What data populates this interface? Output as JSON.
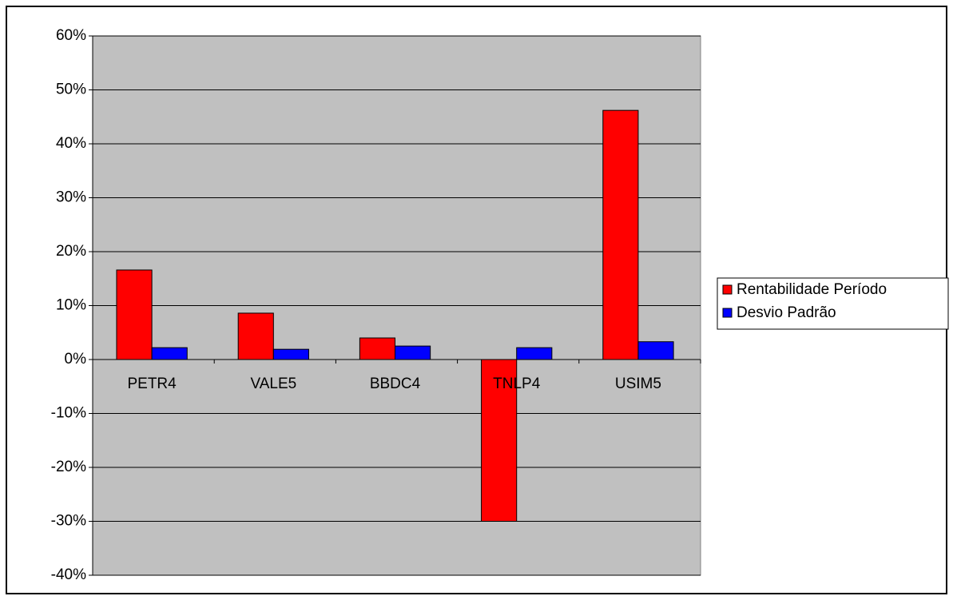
{
  "chart_data": {
    "type": "bar",
    "categories": [
      "PETR4",
      "VALE5",
      "BBDC4",
      "TNLP4",
      "USIM5"
    ],
    "series": [
      {
        "name": "Rentabilidade Período",
        "color": "#ff0000",
        "values": [
          16.6,
          8.6,
          4.0,
          -30,
          46.2
        ]
      },
      {
        "name": "Desvio Padrão",
        "color": "#0000ff",
        "values": [
          2.2,
          1.9,
          2.5,
          2.2,
          3.3
        ]
      }
    ],
    "ylim": [
      -40,
      60
    ],
    "yticks": [
      {
        "value": -40,
        "label": "-40%"
      },
      {
        "value": -30,
        "label": "-30%"
      },
      {
        "value": -20,
        "label": "-20%"
      },
      {
        "value": -10,
        "label": "-10%"
      },
      {
        "value": 0,
        "label": "0%"
      },
      {
        "value": 10,
        "label": "10%"
      },
      {
        "value": 20,
        "label": "20%"
      },
      {
        "value": 30,
        "label": "30%"
      },
      {
        "value": 40,
        "label": "40%"
      },
      {
        "value": 50,
        "label": "50%"
      },
      {
        "value": 60,
        "label": "60%"
      }
    ],
    "grid": true,
    "legend": "right"
  }
}
